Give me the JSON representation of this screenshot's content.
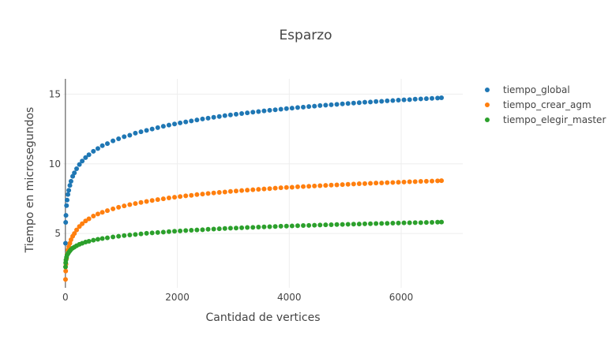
{
  "chart_data": {
    "type": "scatter",
    "title": "Esparzo",
    "xlabel": "Cantidad de vertices",
    "ylabel": "Tiempo en microsegundos",
    "xlim": [
      -40,
      7100
    ],
    "ylim": [
      1.1,
      16.1
    ],
    "x_ticks": [
      0,
      2000,
      4000,
      6000
    ],
    "x_tick_labels": [
      "0",
      "2000",
      "4000",
      "6000"
    ],
    "y_ticks": [
      5,
      10,
      15
    ],
    "y_tick_labels": [
      "5",
      "10",
      "15"
    ],
    "grid": true,
    "legend_position": "top-right",
    "x": [
      2,
      5,
      10,
      20,
      30,
      45,
      60,
      80,
      100,
      130,
      160,
      200,
      250,
      300,
      360,
      420,
      500,
      580,
      660,
      750,
      850,
      950,
      1050,
      1150,
      1250,
      1350,
      1450,
      1550,
      1650,
      1750,
      1850,
      1950,
      2050,
      2150,
      2250,
      2350,
      2450,
      2550,
      2650,
      2750,
      2850,
      2950,
      3050,
      3150,
      3250,
      3350,
      3450,
      3550,
      3650,
      3750,
      3850,
      3950,
      4050,
      4150,
      4250,
      4350,
      4450,
      4550,
      4650,
      4750,
      4850,
      4950,
      5050,
      5150,
      5250,
      5350,
      5450,
      5550,
      5650,
      5750,
      5850,
      5950,
      6050,
      6150,
      6250,
      6350,
      6450,
      6550,
      6650,
      6720
    ],
    "series": [
      {
        "name": "tiempo_global",
        "color": "#1f77b4",
        "values": [
          4.3,
          5.8,
          6.3,
          7.0,
          7.4,
          7.8,
          8.1,
          8.45,
          8.75,
          9.1,
          9.35,
          9.65,
          9.95,
          10.2,
          10.45,
          10.65,
          10.9,
          11.1,
          11.3,
          11.45,
          11.65,
          11.8,
          11.95,
          12.05,
          12.2,
          12.3,
          12.4,
          12.5,
          12.6,
          12.7,
          12.78,
          12.86,
          12.94,
          13.01,
          13.08,
          13.15,
          13.22,
          13.28,
          13.34,
          13.4,
          13.46,
          13.51,
          13.56,
          13.61,
          13.66,
          13.71,
          13.75,
          13.8,
          13.84,
          13.88,
          13.92,
          13.96,
          14.0,
          14.04,
          14.07,
          14.11,
          14.14,
          14.18,
          14.21,
          14.24,
          14.27,
          14.3,
          14.33,
          14.36,
          14.39,
          14.42,
          14.44,
          14.47,
          14.49,
          14.52,
          14.54,
          14.57,
          14.59,
          14.61,
          14.64,
          14.66,
          14.68,
          14.7,
          14.72,
          14.74
        ]
      },
      {
        "name": "tiempo_crear_agm",
        "color": "#ff7f0e",
        "values": [
          1.7,
          2.3,
          2.8,
          3.2,
          3.5,
          3.8,
          4.05,
          4.3,
          4.55,
          4.8,
          5.0,
          5.25,
          5.5,
          5.7,
          5.9,
          6.05,
          6.25,
          6.4,
          6.52,
          6.64,
          6.77,
          6.88,
          6.98,
          7.07,
          7.15,
          7.23,
          7.3,
          7.37,
          7.43,
          7.49,
          7.55,
          7.6,
          7.65,
          7.7,
          7.74,
          7.79,
          7.83,
          7.87,
          7.91,
          7.95,
          7.98,
          8.02,
          8.05,
          8.08,
          8.11,
          8.14,
          8.17,
          8.2,
          8.22,
          8.25,
          8.28,
          8.3,
          8.32,
          8.35,
          8.37,
          8.39,
          8.41,
          8.43,
          8.45,
          8.47,
          8.49,
          8.51,
          8.53,
          8.55,
          8.57,
          8.58,
          8.6,
          8.62,
          8.63,
          8.65,
          8.66,
          8.68,
          8.69,
          8.71,
          8.72,
          8.74,
          8.75,
          8.76,
          8.78,
          8.79
        ]
      },
      {
        "name": "tiempo_elegir_master",
        "color": "#2ca02c",
        "values": [
          2.6,
          2.9,
          3.1,
          3.3,
          3.45,
          3.55,
          3.65,
          3.75,
          3.85,
          3.95,
          4.02,
          4.12,
          4.22,
          4.3,
          4.38,
          4.44,
          4.52,
          4.58,
          4.64,
          4.69,
          4.75,
          4.8,
          4.85,
          4.89,
          4.93,
          4.97,
          5.01,
          5.04,
          5.07,
          5.1,
          5.13,
          5.16,
          5.18,
          5.21,
          5.23,
          5.25,
          5.27,
          5.3,
          5.32,
          5.34,
          5.36,
          5.38,
          5.39,
          5.41,
          5.43,
          5.44,
          5.46,
          5.47,
          5.49,
          5.5,
          5.52,
          5.53,
          5.54,
          5.56,
          5.57,
          5.58,
          5.59,
          5.61,
          5.62,
          5.63,
          5.64,
          5.65,
          5.66,
          5.67,
          5.68,
          5.69,
          5.7,
          5.71,
          5.72,
          5.73,
          5.74,
          5.75,
          5.76,
          5.77,
          5.78,
          5.78,
          5.79,
          5.8,
          5.81,
          5.82
        ]
      }
    ]
  }
}
